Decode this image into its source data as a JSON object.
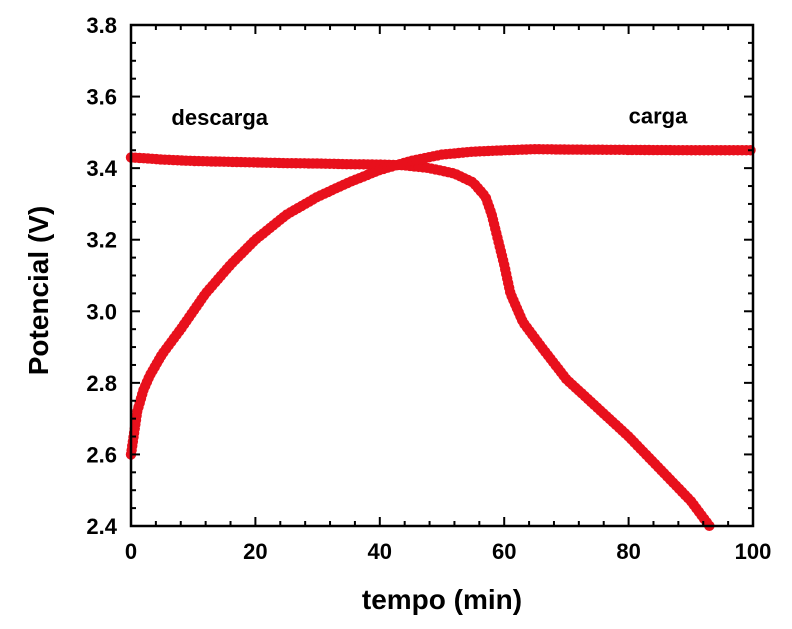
{
  "chart_data": {
    "type": "scatter",
    "xlabel": "tempo (min)",
    "ylabel": "Potencial (V)",
    "xlim": [
      0,
      100
    ],
    "ylim": [
      2.4,
      3.8
    ],
    "xticks": [
      "0",
      "20",
      "40",
      "60",
      "80",
      "100"
    ],
    "yticks": [
      "2.4",
      "2.6",
      "2.8",
      "3.0",
      "3.2",
      "3.4",
      "3.6",
      "3.8"
    ],
    "grid": false,
    "marker_color": "#e8101c",
    "annotations": [
      {
        "text": "descarga",
        "x": 6.5,
        "y": 3.52
      },
      {
        "text": "carga",
        "x": 80,
        "y": 3.525
      }
    ],
    "series": [
      {
        "name": "descarga",
        "points": [
          [
            0,
            3.43
          ],
          [
            2,
            3.428
          ],
          [
            5,
            3.424
          ],
          [
            10,
            3.42
          ],
          [
            15,
            3.418
          ],
          [
            20,
            3.416
          ],
          [
            25,
            3.414
          ],
          [
            30,
            3.413
          ],
          [
            35,
            3.411
          ],
          [
            40,
            3.41
          ],
          [
            44,
            3.408
          ],
          [
            48,
            3.4
          ],
          [
            52,
            3.385
          ],
          [
            55,
            3.36
          ],
          [
            57,
            3.32
          ],
          [
            58,
            3.27
          ],
          [
            59,
            3.2
          ],
          [
            60,
            3.13
          ],
          [
            61,
            3.05
          ],
          [
            63,
            2.97
          ],
          [
            66,
            2.9
          ],
          [
            70,
            2.81
          ],
          [
            75,
            2.73
          ],
          [
            80,
            2.65
          ],
          [
            85,
            2.56
          ],
          [
            90,
            2.47
          ],
          [
            93,
            2.4
          ]
        ]
      },
      {
        "name": "carga",
        "points": [
          [
            0,
            2.6
          ],
          [
            1,
            2.72
          ],
          [
            2,
            2.78
          ],
          [
            3,
            2.82
          ],
          [
            5,
            2.88
          ],
          [
            8,
            2.95
          ],
          [
            12,
            3.05
          ],
          [
            16,
            3.13
          ],
          [
            20,
            3.2
          ],
          [
            25,
            3.27
          ],
          [
            30,
            3.32
          ],
          [
            35,
            3.36
          ],
          [
            40,
            3.395
          ],
          [
            45,
            3.42
          ],
          [
            50,
            3.438
          ],
          [
            55,
            3.446
          ],
          [
            60,
            3.45
          ],
          [
            65,
            3.453
          ],
          [
            70,
            3.452
          ],
          [
            80,
            3.451
          ],
          [
            90,
            3.45
          ],
          [
            100,
            3.45
          ]
        ]
      }
    ]
  }
}
